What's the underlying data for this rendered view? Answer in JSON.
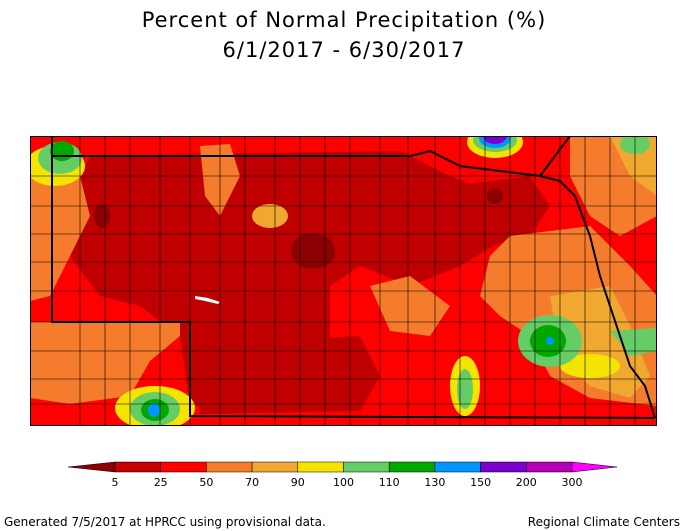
{
  "title": {
    "line1": "Percent of Normal Precipitation (%)",
    "line2": "6/1/2017 - 6/30/2017"
  },
  "legend": {
    "labels": [
      "5",
      "25",
      "50",
      "70",
      "90",
      "100",
      "110",
      "130",
      "150",
      "200",
      "300"
    ],
    "colors": [
      "#8b0000",
      "#c40000",
      "#ff0000",
      "#f47c2c",
      "#f0a830",
      "#f4e400",
      "#66cc66",
      "#00a800",
      "#0096ff",
      "#7a00cc",
      "#b400b4",
      "#ff00ff"
    ]
  },
  "footer": {
    "left": "Generated 7/5/2017 at HPRCC using provisional data.",
    "right": "Regional Climate Centers"
  },
  "colors": {
    "dark_red": "#b40000",
    "red": "#ff0000",
    "orange": "#f47c2c",
    "light_orange": "#f0a830",
    "yellow": "#f4e400",
    "light_green": "#66cc66",
    "green": "#00a800",
    "blue": "#0096ff",
    "purple": "#7a00cc",
    "maroon": "#8b0000"
  }
}
